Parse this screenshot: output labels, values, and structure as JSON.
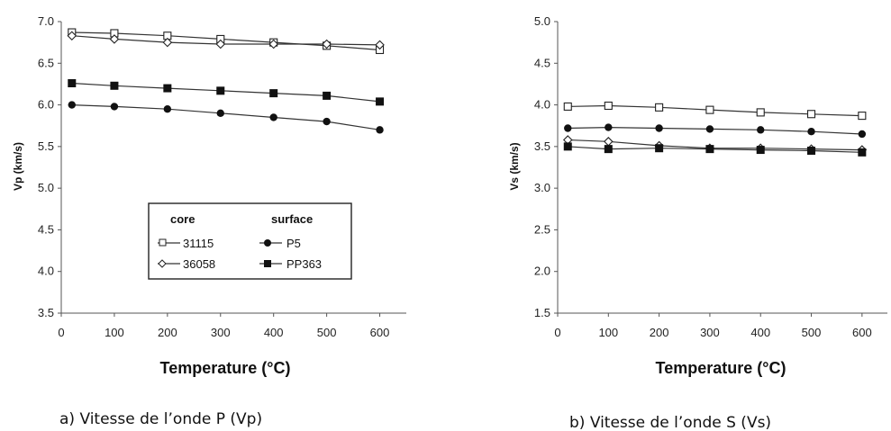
{
  "chart_data": [
    {
      "type": "line",
      "xlabel": "Temperature (°C)",
      "ylabel": "Vp (km/s)",
      "caption": "a) Vitesse de l’onde P (Vp)",
      "xlim": [
        0,
        650
      ],
      "ylim": [
        3.5,
        7.0
      ],
      "xticks": [
        "0",
        "100",
        "200",
        "300",
        "400",
        "500",
        "600"
      ],
      "yticks": [
        "3.5",
        "4.0",
        "4.5",
        "5.0",
        "5.5",
        "6.0",
        "6.5",
        "7.0"
      ],
      "x": [
        20,
        100,
        200,
        300,
        400,
        500,
        600
      ],
      "series": [
        {
          "name": "31115",
          "marker": "open-square",
          "values": [
            6.87,
            6.86,
            6.83,
            6.79,
            6.75,
            6.71,
            6.66
          ]
        },
        {
          "name": "36058",
          "marker": "open-diamond",
          "values": [
            6.83,
            6.79,
            6.75,
            6.73,
            6.73,
            6.73,
            6.72
          ]
        },
        {
          "name": "P5",
          "marker": "filled-circle",
          "values": [
            6.0,
            5.98,
            5.95,
            5.9,
            5.85,
            5.8,
            5.7
          ]
        },
        {
          "name": "PP363",
          "marker": "filled-square",
          "values": [
            6.26,
            6.23,
            6.2,
            6.17,
            6.14,
            6.11,
            6.04
          ]
        }
      ],
      "legend": {
        "position": "center-left",
        "col1_title": "core",
        "col2_title": "surface"
      }
    },
    {
      "type": "line",
      "xlabel": "Temperature (°C)",
      "ylabel": "Vs (km/s)",
      "caption": "b) Vitesse de l’onde S (Vs)",
      "xlim": [
        0,
        650
      ],
      "ylim": [
        1.5,
        5.0
      ],
      "xticks": [
        "0",
        "100",
        "200",
        "300",
        "400",
        "500",
        "600"
      ],
      "yticks": [
        "1.5",
        "2.0",
        "2.5",
        "3.0",
        "3.5",
        "4.0",
        "4.5",
        "5.0"
      ],
      "x": [
        20,
        100,
        200,
        300,
        400,
        500,
        600
      ],
      "series": [
        {
          "name": "31115",
          "marker": "open-square",
          "values": [
            3.98,
            3.99,
            3.97,
            3.94,
            3.91,
            3.89,
            3.87
          ]
        },
        {
          "name": "36058",
          "marker": "open-diamond",
          "values": [
            3.58,
            3.56,
            3.51,
            3.48,
            3.48,
            3.47,
            3.46
          ]
        },
        {
          "name": "P5",
          "marker": "filled-circle",
          "values": [
            3.72,
            3.73,
            3.72,
            3.71,
            3.7,
            3.68,
            3.65
          ]
        },
        {
          "name": "PP363",
          "marker": "filled-square",
          "values": [
            3.5,
            3.47,
            3.48,
            3.47,
            3.46,
            3.45,
            3.43
          ]
        }
      ]
    }
  ]
}
